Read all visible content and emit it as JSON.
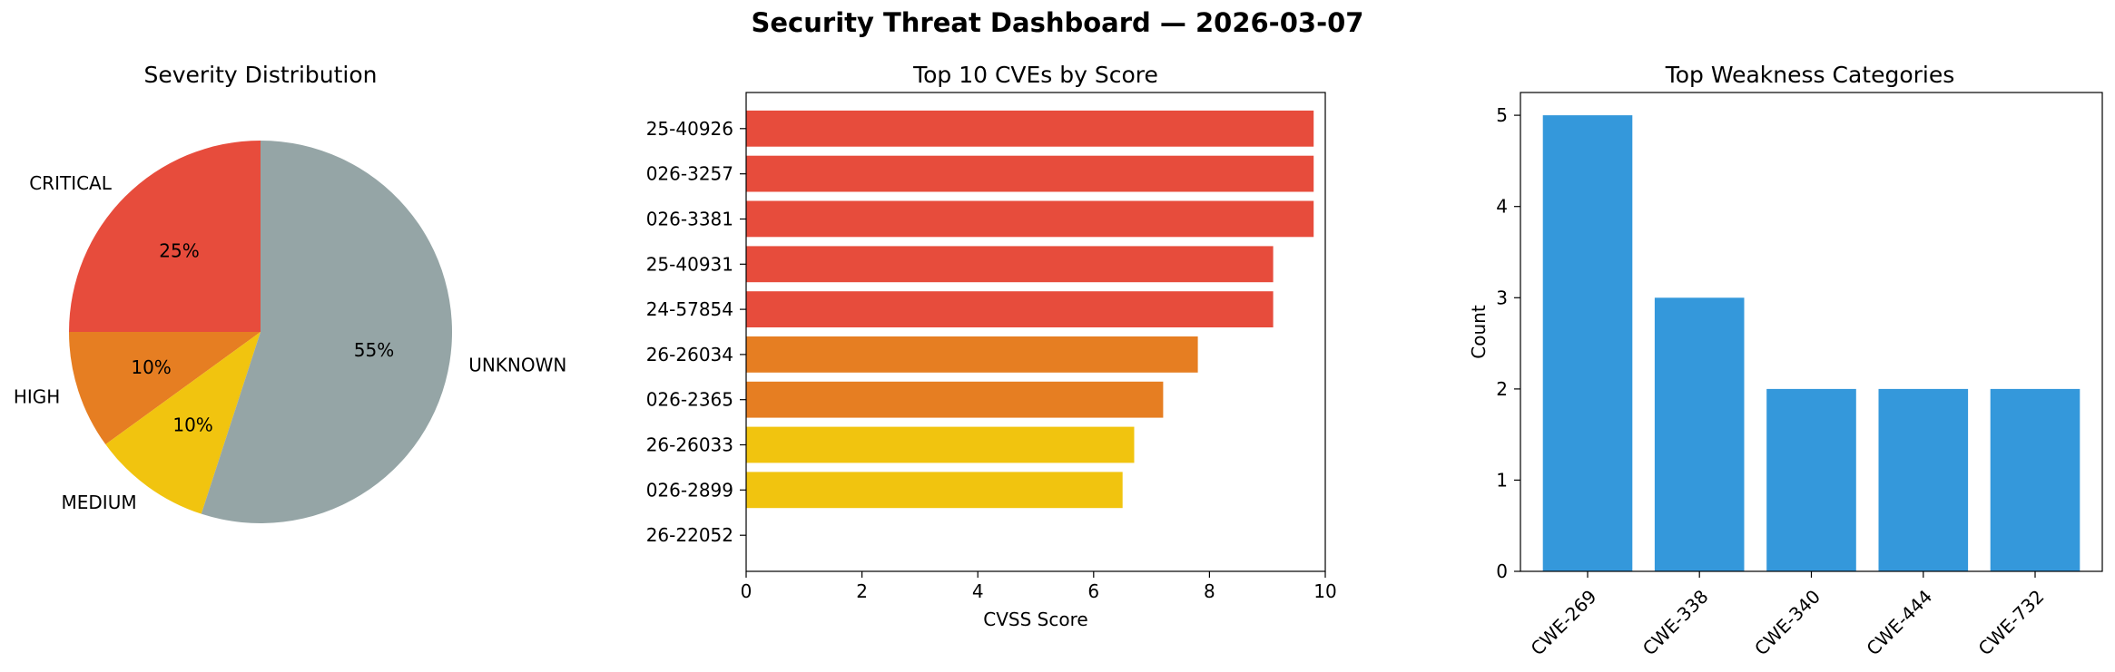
{
  "title": "Security Threat Dashboard — 2026-03-07",
  "chart_data": [
    {
      "type": "pie",
      "title": "Severity Distribution",
      "slices": [
        {
          "label": "CRITICAL",
          "value": 25,
          "pct_label": "25%",
          "color": "#e74c3c"
        },
        {
          "label": "HIGH",
          "value": 10,
          "pct_label": "10%",
          "color": "#e67e22"
        },
        {
          "label": "MEDIUM",
          "value": 10,
          "pct_label": "10%",
          "color": "#f1c40f"
        },
        {
          "label": "UNKNOWN",
          "value": 55,
          "pct_label": "55%",
          "color": "#95a5a6"
        }
      ]
    },
    {
      "type": "bar",
      "orientation": "horizontal",
      "title": "Top 10 CVEs by Score",
      "xlabel": "CVSS Score",
      "xlim": [
        0,
        10
      ],
      "xticks": [
        0,
        2,
        4,
        6,
        8,
        10
      ],
      "bars": [
        {
          "label": "25-40926",
          "value": 9.8,
          "color": "#e74c3c"
        },
        {
          "label": "026-3257",
          "value": 9.8,
          "color": "#e74c3c"
        },
        {
          "label": "026-3381",
          "value": 9.8,
          "color": "#e74c3c"
        },
        {
          "label": "25-40931",
          "value": 9.1,
          "color": "#e74c3c"
        },
        {
          "label": "24-57854",
          "value": 9.1,
          "color": "#e74c3c"
        },
        {
          "label": "26-26034",
          "value": 7.8,
          "color": "#e67e22"
        },
        {
          "label": "026-2365",
          "value": 7.2,
          "color": "#e67e22"
        },
        {
          "label": "26-26033",
          "value": 6.7,
          "color": "#f1c40f"
        },
        {
          "label": "026-2899",
          "value": 6.5,
          "color": "#f1c40f"
        },
        {
          "label": "26-22052",
          "value": 0,
          "color": "#95a5a6"
        }
      ]
    },
    {
      "type": "bar",
      "title": "Top Weakness Categories",
      "ylabel": "Count",
      "ylim": [
        0,
        5.25
      ],
      "yticks": [
        0,
        1,
        2,
        3,
        4,
        5
      ],
      "color": "#3498db",
      "categories": [
        "CWE-269",
        "CWE-338",
        "CWE-340",
        "CWE-444",
        "CWE-732"
      ],
      "values": [
        5,
        3,
        2,
        2,
        2
      ]
    }
  ]
}
